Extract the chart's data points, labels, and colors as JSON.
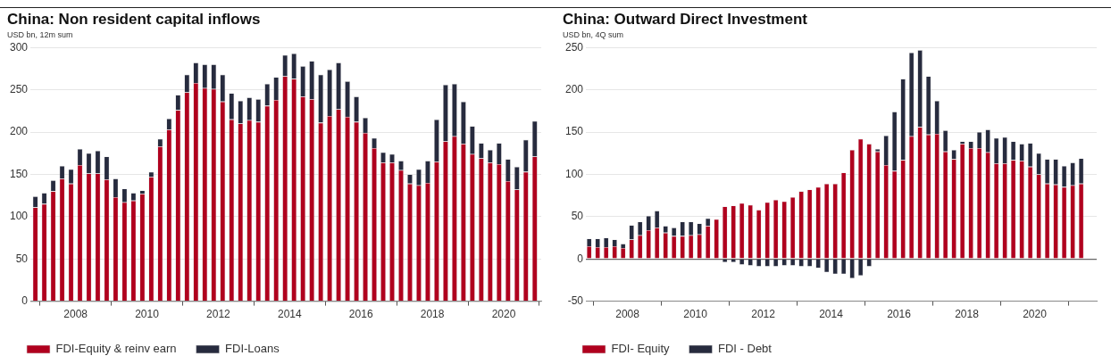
{
  "chart_data": [
    {
      "type": "bar",
      "title": "China: Non resident capital inflows",
      "annotations": [
        "USD bn, 12m sum"
      ],
      "stacked": true,
      "grid": "y",
      "legend": "bottom",
      "x": [
        "2006-11-15",
        "2007-02-15",
        "2007-05-15",
        "2007-08-15",
        "2007-11-15",
        "2008-02-15",
        "2008-05-15",
        "2008-08-15",
        "2008-11-15",
        "2009-02-15",
        "2009-05-15",
        "2009-08-15",
        "2009-11-15",
        "2010-02-15",
        "2010-05-15",
        "2010-08-15",
        "2010-11-15",
        "2011-02-15",
        "2011-05-15",
        "2011-08-15",
        "2011-11-15",
        "2012-02-15",
        "2012-05-15",
        "2012-08-15",
        "2012-11-15",
        "2013-02-15",
        "2013-05-15",
        "2013-08-15",
        "2013-11-15",
        "2014-02-15",
        "2014-05-15",
        "2014-08-15",
        "2014-11-15",
        "2015-02-15",
        "2015-05-15",
        "2015-08-15",
        "2015-11-15",
        "2016-02-15",
        "2016-05-15",
        "2016-08-15",
        "2016-11-15",
        "2017-02-15",
        "2017-05-15",
        "2017-08-15",
        "2017-11-15",
        "2018-02-15",
        "2018-05-15",
        "2018-08-15",
        "2018-11-15",
        "2019-02-15",
        "2019-05-15",
        "2019-08-15",
        "2019-11-15",
        "2020-02-15",
        "2020-05-15",
        "2020-08-15",
        "2020-11-15"
      ],
      "xlim": [
        "2006-09-25",
        "2021-01-20"
      ],
      "xticks": [
        {
          "value": "2008-01-01",
          "label": "2008"
        },
        {
          "value": "2010-01-01",
          "label": "2010"
        },
        {
          "value": "2012-01-01",
          "label": "2012"
        },
        {
          "value": "2014-01-01",
          "label": "2014"
        },
        {
          "value": "2016-01-01",
          "label": "2016"
        },
        {
          "value": "2018-01-01",
          "label": "2018"
        },
        {
          "value": "2020-01-01",
          "label": "2020"
        }
      ],
      "ylim": [
        0,
        300
      ],
      "yticks": [
        0,
        50,
        100,
        150,
        200,
        250,
        300
      ],
      "series": [
        {
          "name": "FDI-Equity & reinv earn",
          "color": "#b0001e",
          "values": [
            111,
            115,
            130,
            145,
            139,
            161,
            151,
            151,
            144,
            123,
            117,
            119,
            127,
            147,
            183,
            203,
            226,
            247,
            258,
            252,
            251,
            236,
            215,
            210,
            214,
            212,
            231,
            238,
            266,
            263,
            242,
            239,
            211,
            219,
            227,
            218,
            212,
            199,
            181,
            164,
            164,
            155,
            139,
            137,
            140,
            165,
            189,
            195,
            186,
            174,
            169,
            164,
            162,
            142,
            132,
            153,
            171
          ]
        },
        {
          "name": "FDI-Loans",
          "color": "#272b3e",
          "values": [
            13,
            13,
            13,
            15,
            17,
            19,
            24,
            27,
            27,
            22,
            16,
            9,
            4,
            6,
            9,
            13,
            18,
            21,
            24,
            28,
            29,
            32,
            31,
            27,
            27,
            27,
            26,
            27,
            25,
            30,
            36,
            45,
            57,
            55,
            55,
            42,
            30,
            18,
            12,
            12,
            10,
            11,
            11,
            19,
            26,
            50,
            67,
            62,
            50,
            33,
            18,
            15,
            25,
            26,
            27,
            38,
            42
          ]
        }
      ]
    },
    {
      "type": "bar",
      "title": "China: Outward Direct Investment",
      "annotations": [
        "USD bn, 4Q sum"
      ],
      "stacked": true,
      "grid": "y",
      "legend": "bottom",
      "x": [
        "2006-11-15",
        "2007-02-15",
        "2007-05-15",
        "2007-08-15",
        "2007-11-15",
        "2008-02-15",
        "2008-05-15",
        "2008-08-15",
        "2008-11-15",
        "2009-02-15",
        "2009-05-15",
        "2009-08-15",
        "2009-11-15",
        "2010-02-15",
        "2010-05-15",
        "2010-08-15",
        "2010-11-15",
        "2011-02-15",
        "2011-05-15",
        "2011-08-15",
        "2011-11-15",
        "2012-02-15",
        "2012-05-15",
        "2012-08-15",
        "2012-11-15",
        "2013-02-15",
        "2013-05-15",
        "2013-08-15",
        "2013-11-15",
        "2014-02-15",
        "2014-05-15",
        "2014-08-15",
        "2014-11-15",
        "2015-02-15",
        "2015-05-15",
        "2015-08-15",
        "2015-11-15",
        "2016-02-15",
        "2016-05-15",
        "2016-08-15",
        "2016-11-15",
        "2017-02-15",
        "2017-05-15",
        "2017-08-15",
        "2017-11-15",
        "2018-02-15",
        "2018-05-15",
        "2018-08-15",
        "2018-11-15",
        "2019-02-15",
        "2019-05-15",
        "2019-08-15",
        "2019-11-15",
        "2020-02-15",
        "2020-05-15",
        "2020-08-15",
        "2020-11-15",
        "2021-02-15",
        "2021-05-15"
      ],
      "xlim": [
        "2006-10-10",
        "2021-10-30"
      ],
      "xticks": [
        {
          "value": "2008-01-01",
          "label": "2008"
        },
        {
          "value": "2010-01-01",
          "label": "2010"
        },
        {
          "value": "2012-01-01",
          "label": "2012"
        },
        {
          "value": "2014-01-01",
          "label": "2014"
        },
        {
          "value": "2016-01-01",
          "label": "2016"
        },
        {
          "value": "2018-01-01",
          "label": "2018"
        },
        {
          "value": "2020-01-01",
          "label": "2020"
        }
      ],
      "ylim": [
        -50,
        250
      ],
      "yticks": [
        -50,
        0,
        50,
        100,
        150,
        200,
        250
      ],
      "series": [
        {
          "name": "FDI- Equity",
          "color": "#b0001e",
          "values": [
            15,
            14,
            14,
            15,
            13,
            23,
            28,
            34,
            37,
            31,
            27,
            27,
            28,
            29,
            39,
            47,
            62,
            63,
            66,
            64,
            58,
            67,
            70,
            68,
            73,
            80,
            82,
            85,
            89,
            89,
            102,
            129,
            142,
            136,
            127,
            111,
            104,
            117,
            145,
            156,
            147,
            148,
            127,
            118,
            136,
            131,
            131,
            126,
            113,
            113,
            117,
            116,
            109,
            100,
            89,
            88,
            85,
            87,
            89
          ]
        },
        {
          "name": "FDI - Debt",
          "color": "#272b3e",
          "values": [
            9,
            10,
            11,
            8,
            5,
            17,
            16,
            17,
            20,
            8,
            10,
            17,
            16,
            13,
            9,
            0,
            -4,
            -4,
            -7,
            -8,
            -9,
            -9,
            -9,
            -8,
            -8,
            -9,
            -9,
            -11,
            -16,
            -18,
            -18,
            -23,
            -20,
            -9,
            3,
            35,
            70,
            96,
            99,
            91,
            69,
            39,
            25,
            11,
            3,
            8,
            19,
            27,
            30,
            31,
            22,
            20,
            28,
            25,
            29,
            30,
            25,
            27,
            30
          ]
        }
      ]
    }
  ]
}
